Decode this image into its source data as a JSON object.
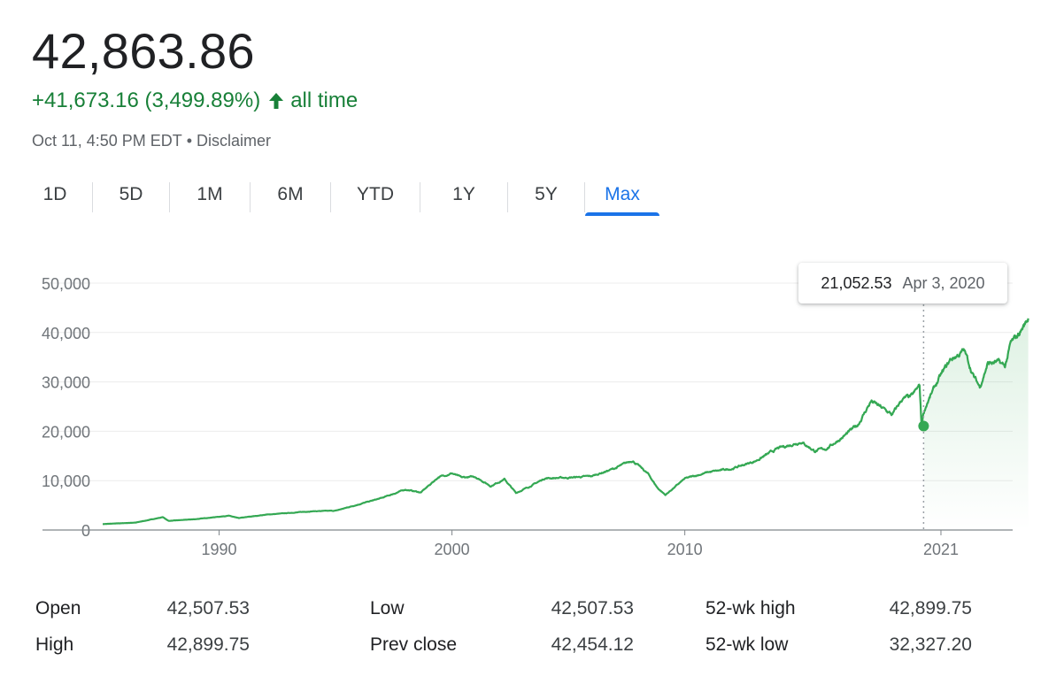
{
  "header": {
    "price": "42,863.86",
    "change": "+41,673.16 (3,499.89%)",
    "change_period": "all time",
    "change_color": "#188038",
    "change_icon": "arrow-up-icon",
    "as_of": "Oct 11, 4:50 PM EDT",
    "separator": "•",
    "disclaimer": "Disclaimer"
  },
  "tabs": [
    {
      "label": "1D",
      "active": false
    },
    {
      "label": "5D",
      "active": false
    },
    {
      "label": "1M",
      "active": false
    },
    {
      "label": "6M",
      "active": false
    },
    {
      "label": "YTD",
      "active": false
    },
    {
      "label": "1Y",
      "active": false
    },
    {
      "label": "5Y",
      "active": false
    },
    {
      "label": "Max",
      "active": true
    }
  ],
  "tooltip": {
    "value": "21,052.53",
    "date": "Apr 3, 2020"
  },
  "chart_data": {
    "type": "area",
    "title": "",
    "xlabel": "",
    "ylabel": "",
    "line_color": "#34a853",
    "grid": true,
    "ylim": [
      0,
      50000
    ],
    "yticks": [
      0,
      10000,
      20000,
      30000,
      40000,
      50000
    ],
    "ytick_labels": [
      "0",
      "10,000",
      "20,000",
      "30,000",
      "40,000",
      "50,000"
    ],
    "xticks": [
      "1990",
      "2000",
      "2010",
      "2021"
    ],
    "series": [
      {
        "x": [
          "1985-01",
          "1986-06",
          "1987-08",
          "1987-11",
          "1989-01",
          "1990-06",
          "1990-11",
          "1992-01",
          "1994-01",
          "1995-01",
          "1996-01",
          "1997-01",
          "1998-01",
          "1998-09",
          "1999-06",
          "2000-01",
          "2000-06",
          "2001-01",
          "2001-09",
          "2002-04",
          "2002-10",
          "2003-06",
          "2004-01",
          "2005-01",
          "2006-01",
          "2007-01",
          "2007-10",
          "2008-06",
          "2008-11",
          "2009-03",
          "2010-01",
          "2011-01",
          "2012-01",
          "2013-01",
          "2014-01",
          "2015-01",
          "2015-08",
          "2016-02",
          "2016-11",
          "2017-06",
          "2018-01",
          "2018-12",
          "2019-05",
          "2019-10",
          "2020-02",
          "2020-03",
          "2020-04",
          "2020-06",
          "2020-12",
          "2021-06",
          "2022-01",
          "2022-06",
          "2022-09",
          "2023-01",
          "2023-06",
          "2023-10",
          "2024-01",
          "2024-04",
          "2024-10"
        ],
        "y": [
          1200,
          1500,
          2600,
          1850,
          2200,
          2900,
          2400,
          3100,
          3800,
          3900,
          5200,
          6500,
          8200,
          7600,
          10700,
          11500,
          10600,
          10800,
          8900,
          10300,
          7500,
          9000,
          10500,
          10600,
          10900,
          12500,
          14100,
          11400,
          8500,
          7100,
          10400,
          11700,
          12400,
          13900,
          16500,
          17900,
          16000,
          16500,
          19000,
          21200,
          26100,
          23300,
          26500,
          27000,
          29200,
          21000,
          23700,
          25900,
          30600,
          34500,
          36300,
          31000,
          29000,
          33700,
          34000,
          33100,
          37700,
          39000,
          42864
        ]
      }
    ],
    "highlight": {
      "x": "2020-04-03",
      "y": 21052.53
    }
  },
  "stats": [
    [
      {
        "label": "Open",
        "value": "42,507.53"
      },
      {
        "label": "High",
        "value": "42,899.75"
      }
    ],
    [
      {
        "label": "Low",
        "value": "42,507.53"
      },
      {
        "label": "Prev close",
        "value": "42,454.12"
      }
    ],
    [
      {
        "label": "52-wk high",
        "value": "42,899.75"
      },
      {
        "label": "52-wk low",
        "value": "32,327.20"
      }
    ]
  ]
}
